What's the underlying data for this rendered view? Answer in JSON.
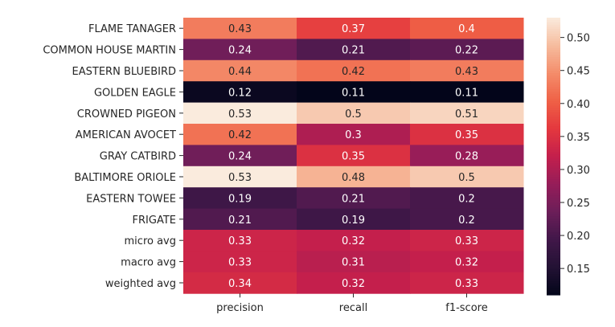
{
  "chart_data": {
    "type": "heatmap",
    "title": "",
    "xlabel": "",
    "ylabel": "",
    "columns": [
      "precision",
      "recall",
      "f1-score"
    ],
    "rows": [
      "FLAME TANAGER",
      "COMMON HOUSE MARTIN",
      "EASTERN BLUEBIRD",
      "GOLDEN EAGLE",
      "CROWNED PIGEON",
      "AMERICAN AVOCET",
      "GRAY CATBIRD",
      "BALTIMORE ORIOLE",
      "EASTERN TOWEE",
      "FRIGATE",
      "micro avg",
      "macro avg",
      "weighted avg"
    ],
    "values": [
      [
        0.43,
        0.37,
        0.4
      ],
      [
        0.24,
        0.21,
        0.22
      ],
      [
        0.44,
        0.42,
        0.43
      ],
      [
        0.12,
        0.11,
        0.11
      ],
      [
        0.53,
        0.5,
        0.51
      ],
      [
        0.42,
        0.3,
        0.35
      ],
      [
        0.24,
        0.35,
        0.28
      ],
      [
        0.53,
        0.48,
        0.5
      ],
      [
        0.19,
        0.21,
        0.2
      ],
      [
        0.21,
        0.19,
        0.2
      ],
      [
        0.33,
        0.32,
        0.33
      ],
      [
        0.33,
        0.31,
        0.32
      ],
      [
        0.34,
        0.32,
        0.33
      ]
    ],
    "colormap": "rocket",
    "colorbar": {
      "ticks": [
        "0.15",
        "0.20",
        "0.25",
        "0.30",
        "0.35",
        "0.40",
        "0.45",
        "0.50"
      ],
      "vmin": 0.11,
      "vmax": 0.53
    },
    "annotations": true,
    "grid": false
  }
}
